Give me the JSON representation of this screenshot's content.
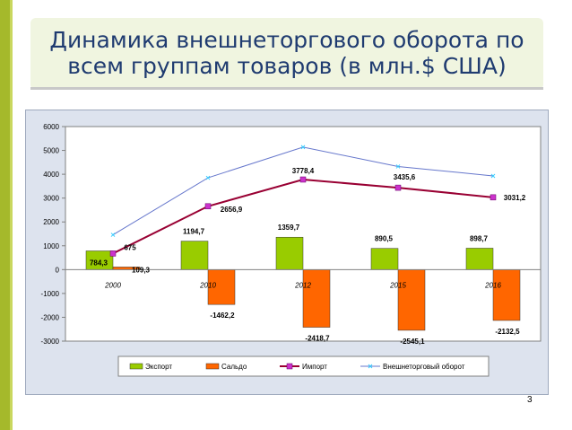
{
  "slide": {
    "title": "Динамика внешнеторгового оборота по\nвсем группам товаров (в млн.$ США)",
    "page_number": "3"
  },
  "colors": {
    "accent_bar": "#a5b92b",
    "export": "#99cc00",
    "saldo": "#ff6600",
    "import": "#990033",
    "turnover": "#6677cc"
  },
  "chart_data": {
    "type": "bar",
    "categories": [
      "2000",
      "2010",
      "2012",
      "2015",
      "2016"
    ],
    "ylim": [
      -3000,
      6000
    ],
    "yticks": [
      "-3000",
      "-2000",
      "-1000",
      "0",
      "1000",
      "2000",
      "3000",
      "4000",
      "5000",
      "6000"
    ],
    "legend_position": "bottom",
    "series": [
      {
        "name": "Экспорт",
        "kind": "bar",
        "values": [
          784.3,
          1194.7,
          1359.7,
          890.5,
          898.7
        ],
        "labels": [
          "784,3",
          "1194,7",
          "1359,7",
          "890,5",
          "898,7"
        ]
      },
      {
        "name": "Сальдо",
        "kind": "bar",
        "values": [
          109.3,
          -1462.2,
          -2418.7,
          -2545.1,
          -2132.5
        ],
        "labels": [
          "109,3",
          "-1462,2",
          "-2418,7",
          "-2545,1",
          "-2132,5"
        ]
      },
      {
        "name": "Импорт",
        "kind": "line",
        "values": [
          675,
          2656.9,
          3778.4,
          3435.6,
          3031.2
        ],
        "labels": [
          "675",
          "2656,9",
          "3778,4",
          "3435,6",
          "3031,2"
        ]
      },
      {
        "name": "Внешнеторговый оборот",
        "kind": "line",
        "values": [
          1459.3,
          3851.6,
          5138.1,
          4326.1,
          3929.9
        ],
        "labels": []
      }
    ]
  }
}
